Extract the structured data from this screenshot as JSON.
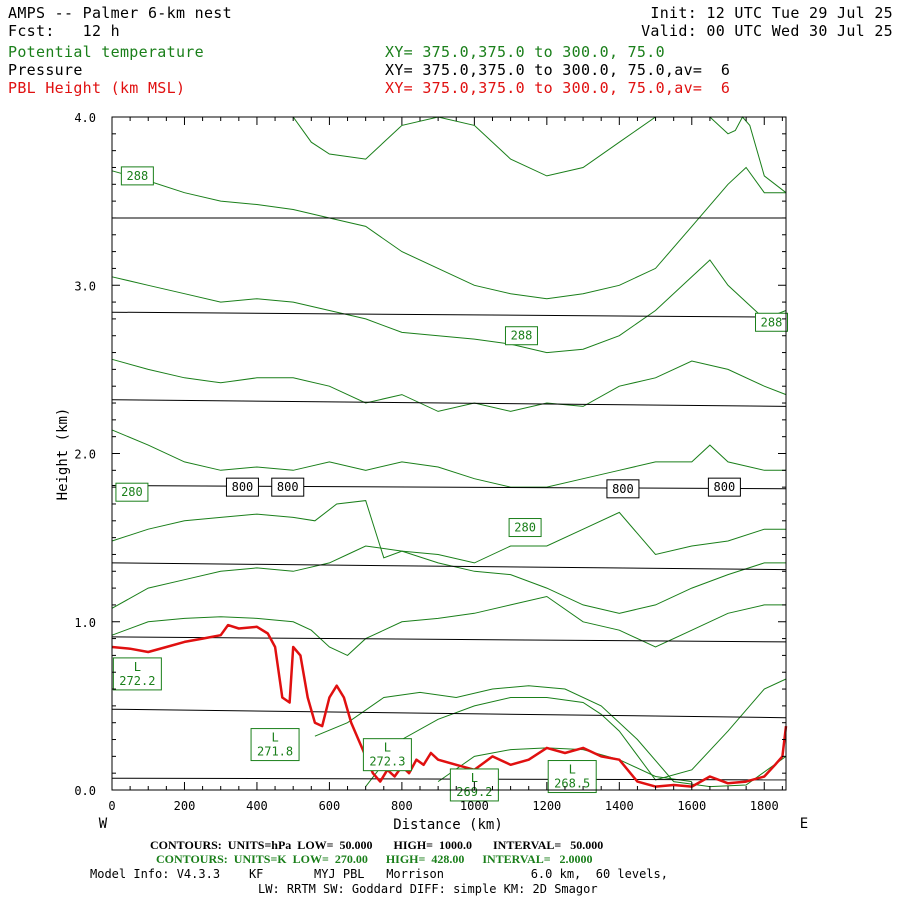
{
  "header": {
    "title": "AMPS -- Palmer 6-km nest",
    "fcst": "Fcst:   12 h",
    "init": "Init: 12 UTC Tue 29 Jul 25",
    "valid": "Valid: 00 UTC Wed 30 Jul 25",
    "fields": [
      {
        "name": "Potential temperature",
        "xy": "XY= 375.0,375.0 to 300.0, 75.0",
        "color": "#1a7f1a"
      },
      {
        "name": "Pressure",
        "xy": "XY= 375.0,375.0 to 300.0, 75.0,av=  6",
        "color": "#000000"
      },
      {
        "name": "PBL Height (km MSL)",
        "xy": "XY= 375.0,375.0 to 300.0, 75.0,av=  6",
        "color": "#e01010"
      }
    ]
  },
  "chart_data": {
    "type": "line",
    "xlabel": "Distance (km)",
    "ylabel": "Height (km)",
    "xlim": [
      0,
      1860
    ],
    "ylim": [
      0,
      4.0
    ],
    "xticks": [
      "0",
      "200",
      "400",
      "600",
      "800",
      "1000",
      "1200",
      "1400",
      "1600",
      "1800"
    ],
    "yticks": [
      "0.0",
      "1.0",
      "2.0",
      "3.0",
      "4.0"
    ],
    "left_label": "W",
    "right_label": "E",
    "colors": {
      "theta": "#1a7f1a",
      "pressure": "#000000",
      "pbl": "#e01010"
    },
    "pressure_contours": [
      {
        "x": [
          0,
          1860
        ],
        "y": [
          0.07,
          0.06
        ]
      },
      {
        "x": [
          0,
          1860
        ],
        "y": [
          0.48,
          0.43
        ]
      },
      {
        "x": [
          0,
          1860
        ],
        "y": [
          0.91,
          0.88
        ]
      },
      {
        "x": [
          0,
          1860
        ],
        "y": [
          1.35,
          1.31
        ]
      },
      {
        "x": [
          0,
          1860
        ],
        "y": [
          1.81,
          1.79
        ]
      },
      {
        "x": [
          0,
          1860
        ],
        "y": [
          2.32,
          2.28
        ]
      },
      {
        "x": [
          0,
          1860
        ],
        "y": [
          2.84,
          2.81
        ]
      },
      {
        "x": [
          0,
          1860
        ],
        "y": [
          3.4,
          3.4
        ]
      }
    ],
    "pressure_labels": [
      {
        "text": "800",
        "x": 360,
        "y": 1.8
      },
      {
        "text": "800",
        "x": 485,
        "y": 1.8
      },
      {
        "text": "800",
        "x": 1410,
        "y": 1.79
      },
      {
        "text": "800",
        "x": 1690,
        "y": 1.8
      }
    ],
    "theta_contours": [
      {
        "x": [
          0,
          100,
          200,
          300,
          400,
          500,
          550,
          600,
          650,
          700,
          750,
          800,
          900,
          1000,
          1100,
          1200,
          1300,
          1400,
          1500,
          1600,
          1700,
          1800,
          1860
        ],
        "y": [
          0.92,
          1.0,
          1.02,
          1.03,
          1.02,
          1.0,
          0.95,
          0.85,
          0.8,
          0.9,
          0.95,
          1.0,
          1.02,
          1.05,
          1.1,
          1.15,
          1.0,
          0.95,
          0.85,
          0.95,
          1.05,
          1.1,
          1.1
        ]
      },
      {
        "x": [
          0,
          100,
          200,
          300,
          400,
          500,
          600,
          650,
          700,
          800,
          900,
          1000,
          1100,
          1200,
          1300,
          1400,
          1500,
          1600,
          1700,
          1800,
          1860
        ],
        "y": [
          1.08,
          1.2,
          1.25,
          1.3,
          1.32,
          1.3,
          1.35,
          1.4,
          1.45,
          1.42,
          1.35,
          1.3,
          1.28,
          1.2,
          1.1,
          1.05,
          1.1,
          1.2,
          1.28,
          1.35,
          1.35
        ]
      },
      {
        "x": [
          0,
          100,
          200,
          300,
          400,
          500,
          560,
          620,
          700,
          750,
          800,
          900,
          1000,
          1100,
          1200,
          1300,
          1400,
          1500,
          1600,
          1700,
          1800,
          1860
        ],
        "y": [
          1.48,
          1.55,
          1.6,
          1.62,
          1.64,
          1.62,
          1.6,
          1.7,
          1.72,
          1.38,
          1.42,
          1.4,
          1.35,
          1.45,
          1.45,
          1.55,
          1.65,
          1.4,
          1.45,
          1.48,
          1.55,
          1.55
        ]
      },
      {
        "x": [
          0,
          100,
          200,
          300,
          400,
          500,
          600,
          700,
          800,
          900,
          1000,
          1100,
          1200,
          1300,
          1400,
          1500,
          1600,
          1650,
          1700,
          1800,
          1860
        ],
        "y": [
          2.14,
          2.05,
          1.95,
          1.9,
          1.92,
          1.9,
          1.95,
          1.9,
          1.95,
          1.92,
          1.85,
          1.8,
          1.8,
          1.85,
          1.9,
          1.95,
          1.95,
          2.05,
          1.95,
          1.9,
          1.9
        ]
      },
      {
        "x": [
          0,
          100,
          200,
          300,
          400,
          500,
          600,
          700,
          800,
          900,
          1000,
          1100,
          1200,
          1300,
          1400,
          1500,
          1600,
          1700,
          1800,
          1860
        ],
        "y": [
          2.56,
          2.5,
          2.45,
          2.42,
          2.45,
          2.45,
          2.4,
          2.3,
          2.35,
          2.25,
          2.3,
          2.25,
          2.3,
          2.28,
          2.4,
          2.45,
          2.55,
          2.5,
          2.4,
          2.35
        ]
      },
      {
        "x": [
          0,
          100,
          200,
          300,
          400,
          500,
          600,
          700,
          800,
          900,
          1000,
          1100,
          1200,
          1300,
          1400,
          1500,
          1600,
          1650,
          1700,
          1800,
          1860
        ],
        "y": [
          3.05,
          3.0,
          2.95,
          2.9,
          2.92,
          2.9,
          2.85,
          2.8,
          2.72,
          2.7,
          2.68,
          2.65,
          2.6,
          2.62,
          2.7,
          2.85,
          3.05,
          3.15,
          3.0,
          2.8,
          2.85
        ]
      },
      {
        "x": [
          0,
          100,
          200,
          300,
          400,
          500,
          600,
          700,
          800,
          900,
          1000,
          1100,
          1200,
          1300,
          1400,
          1500,
          1600,
          1700,
          1750,
          1800,
          1860
        ],
        "y": [
          3.68,
          3.62,
          3.55,
          3.5,
          3.48,
          3.45,
          3.4,
          3.35,
          3.2,
          3.1,
          3.0,
          2.95,
          2.92,
          2.95,
          3.0,
          3.1,
          3.35,
          3.6,
          3.7,
          3.55,
          3.55
        ]
      },
      {
        "x": [
          500,
          550,
          600,
          700,
          800,
          900,
          1000,
          1100,
          1200,
          1300,
          1400,
          1500,
          1600,
          1650,
          1700,
          1720,
          1740,
          1760,
          1800,
          1860
        ],
        "y": [
          4.0,
          3.85,
          3.78,
          3.75,
          3.95,
          4.0,
          3.95,
          3.75,
          3.65,
          3.7,
          3.85,
          4.0,
          4.0,
          4.0,
          3.9,
          3.92,
          4.0,
          3.95,
          3.65,
          3.55
        ]
      },
      {
        "x": [
          560,
          650,
          750,
          850,
          950,
          1050,
          1150,
          1250,
          1350,
          1450,
          1550,
          1650,
          1750,
          1860
        ],
        "y": [
          0.32,
          0.4,
          0.55,
          0.58,
          0.55,
          0.6,
          0.62,
          0.6,
          0.5,
          0.3,
          0.05,
          0.02,
          0.03,
          0.2
        ]
      },
      {
        "x": [
          700,
          800,
          900,
          1000,
          1100,
          1200,
          1300,
          1350,
          1400,
          1500,
          1600,
          1700,
          1800,
          1860
        ],
        "y": [
          0.02,
          0.3,
          0.42,
          0.5,
          0.55,
          0.55,
          0.52,
          0.45,
          0.35,
          0.06,
          0.12,
          0.35,
          0.6,
          0.66
        ]
      },
      {
        "x": [
          900,
          1000,
          1100,
          1200,
          1300,
          1400,
          1500,
          1600
        ],
        "y": [
          0.05,
          0.2,
          0.24,
          0.25,
          0.24,
          0.18,
          0.08,
          0.05
        ]
      }
    ],
    "theta_labels": [
      {
        "text": "288",
        "x": 70,
        "y": 3.65
      },
      {
        "text": "288",
        "x": 1130,
        "y": 2.7
      },
      {
        "text": "288",
        "x": 1820,
        "y": 2.78
      },
      {
        "text": "280",
        "x": 55,
        "y": 1.77
      },
      {
        "text": "280",
        "x": 1140,
        "y": 1.56
      }
    ],
    "low_labels": [
      {
        "letter": "L",
        "value": "272.2",
        "x": 70,
        "y": 0.69
      },
      {
        "letter": "L",
        "value": "271.8",
        "x": 450,
        "y": 0.27
      },
      {
        "letter": "L",
        "value": "272.3",
        "x": 760,
        "y": 0.21
      },
      {
        "letter": "L",
        "value": "269.2",
        "x": 1000,
        "y": 0.03
      },
      {
        "letter": "L",
        "value": "268.5",
        "x": 1270,
        "y": 0.08
      }
    ],
    "pbl_height": {
      "x": [
        0,
        50,
        100,
        150,
        200,
        250,
        300,
        320,
        350,
        400,
        430,
        450,
        470,
        490,
        500,
        520,
        540,
        560,
        580,
        600,
        620,
        640,
        660,
        680,
        700,
        720,
        740,
        760,
        780,
        800,
        820,
        840,
        860,
        880,
        900,
        950,
        1000,
        1050,
        1100,
        1150,
        1200,
        1250,
        1300,
        1350,
        1400,
        1450,
        1500,
        1550,
        1600,
        1650,
        1700,
        1750,
        1800,
        1830,
        1850,
        1860
      ],
      "y": [
        0.85,
        0.84,
        0.82,
        0.85,
        0.88,
        0.9,
        0.92,
        0.98,
        0.96,
        0.97,
        0.93,
        0.85,
        0.55,
        0.52,
        0.85,
        0.8,
        0.55,
        0.4,
        0.38,
        0.55,
        0.62,
        0.55,
        0.4,
        0.3,
        0.2,
        0.1,
        0.05,
        0.12,
        0.08,
        0.14,
        0.1,
        0.18,
        0.15,
        0.22,
        0.18,
        0.15,
        0.12,
        0.2,
        0.15,
        0.18,
        0.25,
        0.22,
        0.25,
        0.2,
        0.18,
        0.05,
        0.02,
        0.03,
        0.02,
        0.08,
        0.04,
        0.05,
        0.08,
        0.15,
        0.2,
        0.38
      ]
    }
  },
  "footer": {
    "pressure_contours": "CONTOURS:  UNITS=hPa  LOW=  50.000       HIGH=  1000.0       INTERVAL=   50.000",
    "theta_contours": "CONTOURS:  UNITS=K  LOW=  270.00      HIGH=  428.00      INTERVAL=   2.0000",
    "model_info": "Model Info: V4.3.3    KF       MYJ PBL   Morrison            6.0 km,  60 levels,",
    "physics": "LW: RRTM SW: Goddard DIFF: simple KM: 2D Smagor"
  }
}
